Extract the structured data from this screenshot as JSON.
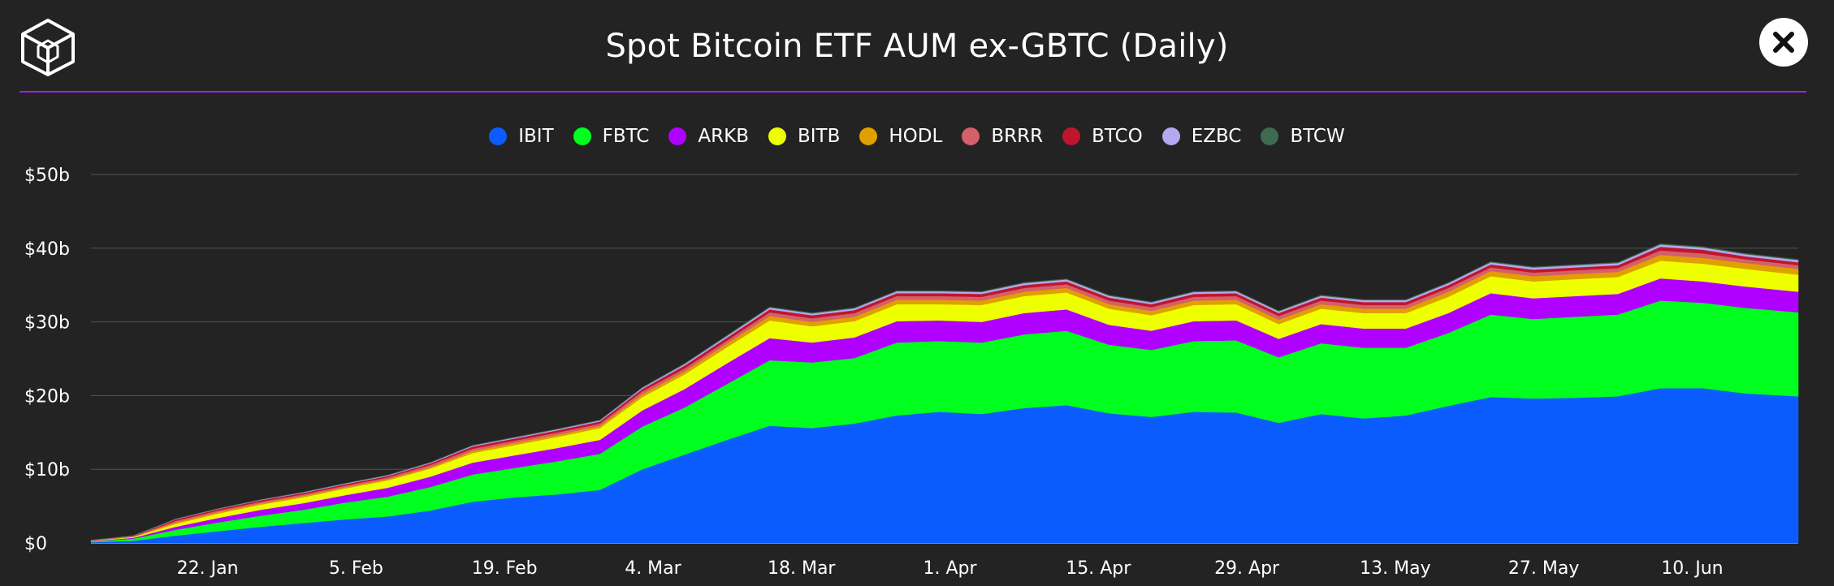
{
  "header": {
    "title": "Spot Bitcoin ETF AUM ex-GBTC (Daily)",
    "logo_icon": "cube-logo-icon",
    "close_icon": "close-icon"
  },
  "colors": {
    "background": "#232323",
    "divider": "#a020f0",
    "grid": "#555555"
  },
  "chart_data": {
    "type": "area",
    "stacked": true,
    "title": "Spot Bitcoin ETF AUM ex-GBTC (Daily)",
    "ylim": [
      0,
      50
    ],
    "y_ticks": [
      0,
      10,
      20,
      30,
      40,
      50
    ],
    "y_tick_labels": [
      "$0",
      "$10b",
      "$20b",
      "$30b",
      "$40b",
      "$50b"
    ],
    "x_range": [
      "2024-01-11",
      "2024-06-20"
    ],
    "x_ticks": [
      "2024-01-22",
      "2024-02-05",
      "2024-02-19",
      "2024-03-04",
      "2024-03-18",
      "2024-04-01",
      "2024-04-15",
      "2024-04-29",
      "2024-05-13",
      "2024-05-27",
      "2024-06-10"
    ],
    "x_tick_labels": [
      "22. Jan",
      "5. Feb",
      "19. Feb",
      "4. Mar",
      "18. Mar",
      "1. Apr",
      "15. Apr",
      "29. Apr",
      "13. May",
      "27. May",
      "10. Jun"
    ],
    "legend_position": "top-center",
    "grid": true,
    "x": [
      "2024-01-11",
      "2024-01-15",
      "2024-01-19",
      "2024-01-23",
      "2024-01-27",
      "2024-01-31",
      "2024-02-04",
      "2024-02-08",
      "2024-02-12",
      "2024-02-16",
      "2024-02-20",
      "2024-02-24",
      "2024-02-28",
      "2024-03-03",
      "2024-03-07",
      "2024-03-11",
      "2024-03-15",
      "2024-03-19",
      "2024-03-23",
      "2024-03-27",
      "2024-03-31",
      "2024-04-04",
      "2024-04-08",
      "2024-04-12",
      "2024-04-16",
      "2024-04-20",
      "2024-04-24",
      "2024-04-28",
      "2024-05-02",
      "2024-05-06",
      "2024-05-10",
      "2024-05-14",
      "2024-05-18",
      "2024-05-22",
      "2024-05-26",
      "2024-05-30",
      "2024-06-03",
      "2024-06-07",
      "2024-06-11",
      "2024-06-15",
      "2024-06-20"
    ],
    "series": [
      {
        "name": "IBIT",
        "color": "#0a5cff",
        "values": [
          0.1,
          0.3,
          1.0,
          1.6,
          2.2,
          2.7,
          3.2,
          3.6,
          4.4,
          5.6,
          6.2,
          6.6,
          7.2,
          10.0,
          12.0,
          14.0,
          15.9,
          15.6,
          16.2,
          17.3,
          17.8,
          17.5,
          18.3,
          18.7,
          17.6,
          17.1,
          17.8,
          17.7,
          16.3,
          17.5,
          16.9,
          17.3,
          18.6,
          19.8,
          19.6,
          19.7,
          19.9,
          21.0,
          21.0,
          20.3,
          19.9
        ]
      },
      {
        "name": "FBTC",
        "color": "#00ff1e",
        "values": [
          0.1,
          0.3,
          0.8,
          1.2,
          1.5,
          1.8,
          2.3,
          2.7,
          3.2,
          3.7,
          4.0,
          4.5,
          4.9,
          5.8,
          6.4,
          7.6,
          8.9,
          8.9,
          8.9,
          9.9,
          9.6,
          9.7,
          10.0,
          10.1,
          9.3,
          9.1,
          9.6,
          9.8,
          8.9,
          9.6,
          9.6,
          9.2,
          9.9,
          11.2,
          10.8,
          11.0,
          11.1,
          11.9,
          11.6,
          11.6,
          11.4
        ]
      },
      {
        "name": "ARKB",
        "color": "#b000ff",
        "values": [
          0.05,
          0.1,
          0.4,
          0.6,
          0.8,
          0.9,
          1.0,
          1.2,
          1.4,
          1.6,
          1.7,
          1.8,
          1.9,
          2.2,
          2.5,
          2.8,
          3.0,
          2.7,
          2.8,
          2.9,
          2.8,
          2.8,
          2.9,
          2.9,
          2.7,
          2.6,
          2.7,
          2.7,
          2.5,
          2.6,
          2.6,
          2.6,
          2.7,
          2.9,
          2.8,
          2.8,
          2.8,
          3.0,
          2.9,
          2.9,
          2.8
        ]
      },
      {
        "name": "BITB",
        "color": "#eeff00",
        "values": [
          0.05,
          0.1,
          0.4,
          0.6,
          0.7,
          0.8,
          0.9,
          1.0,
          1.1,
          1.3,
          1.4,
          1.5,
          1.6,
          1.8,
          2.0,
          2.2,
          2.4,
          2.2,
          2.2,
          2.3,
          2.2,
          2.3,
          2.3,
          2.3,
          2.2,
          2.1,
          2.2,
          2.2,
          2.0,
          2.1,
          2.1,
          2.1,
          2.2,
          2.3,
          2.3,
          2.3,
          2.3,
          2.4,
          2.4,
          2.4,
          2.3
        ]
      },
      {
        "name": "HODL",
        "color": "#e0a000",
        "values": [
          0.02,
          0.05,
          0.2,
          0.2,
          0.2,
          0.2,
          0.2,
          0.2,
          0.2,
          0.3,
          0.3,
          0.3,
          0.3,
          0.4,
          0.4,
          0.5,
          0.6,
          0.6,
          0.6,
          0.6,
          0.6,
          0.6,
          0.6,
          0.6,
          0.6,
          0.6,
          0.6,
          0.6,
          0.6,
          0.6,
          0.6,
          0.6,
          0.7,
          0.7,
          0.7,
          0.7,
          0.7,
          0.8,
          0.8,
          0.8,
          0.8
        ]
      },
      {
        "name": "BRRR",
        "color": "#d4606a",
        "values": [
          0.02,
          0.05,
          0.2,
          0.2,
          0.2,
          0.2,
          0.2,
          0.2,
          0.3,
          0.3,
          0.3,
          0.3,
          0.3,
          0.4,
          0.4,
          0.4,
          0.5,
          0.5,
          0.5,
          0.5,
          0.5,
          0.5,
          0.5,
          0.5,
          0.5,
          0.5,
          0.5,
          0.5,
          0.5,
          0.5,
          0.5,
          0.5,
          0.5,
          0.5,
          0.5,
          0.5,
          0.5,
          0.6,
          0.6,
          0.5,
          0.5
        ]
      },
      {
        "name": "BTCO",
        "color": "#c0162c",
        "values": [
          0.02,
          0.05,
          0.2,
          0.2,
          0.2,
          0.2,
          0.2,
          0.2,
          0.2,
          0.3,
          0.3,
          0.3,
          0.3,
          0.3,
          0.4,
          0.4,
          0.4,
          0.4,
          0.4,
          0.4,
          0.4,
          0.4,
          0.4,
          0.4,
          0.4,
          0.4,
          0.4,
          0.4,
          0.4,
          0.4,
          0.4,
          0.4,
          0.4,
          0.4,
          0.4,
          0.4,
          0.4,
          0.5,
          0.5,
          0.4,
          0.4
        ]
      },
      {
        "name": "EZBC",
        "color": "#b4a8f0",
        "values": [
          0.01,
          0.03,
          0.05,
          0.05,
          0.06,
          0.07,
          0.08,
          0.09,
          0.1,
          0.12,
          0.12,
          0.13,
          0.14,
          0.17,
          0.2,
          0.22,
          0.25,
          0.24,
          0.24,
          0.25,
          0.25,
          0.25,
          0.26,
          0.26,
          0.25,
          0.24,
          0.25,
          0.25,
          0.23,
          0.25,
          0.25,
          0.25,
          0.26,
          0.28,
          0.28,
          0.28,
          0.28,
          0.3,
          0.3,
          0.29,
          0.28
        ]
      },
      {
        "name": "BTCW",
        "color": "#3f6b52",
        "values": [
          0.01,
          0.02,
          0.03,
          0.03,
          0.03,
          0.03,
          0.03,
          0.04,
          0.04,
          0.04,
          0.05,
          0.05,
          0.05,
          0.06,
          0.07,
          0.07,
          0.08,
          0.08,
          0.08,
          0.08,
          0.08,
          0.08,
          0.08,
          0.08,
          0.08,
          0.08,
          0.08,
          0.08,
          0.07,
          0.08,
          0.08,
          0.08,
          0.08,
          0.09,
          0.09,
          0.09,
          0.09,
          0.1,
          0.1,
          0.09,
          0.09
        ]
      }
    ]
  }
}
